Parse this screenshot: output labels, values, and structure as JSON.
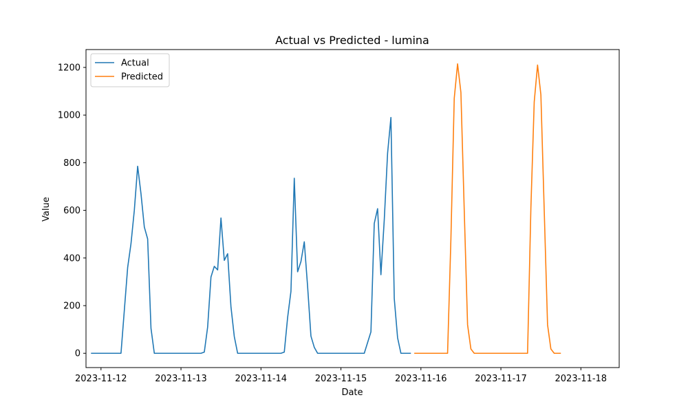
{
  "chart_data": {
    "type": "line",
    "title": "Actual vs Predicted - lumina",
    "xlabel": "Date",
    "ylabel": "Value",
    "x_tick_labels": [
      "2023-11-12",
      "2023-11-13",
      "2023-11-14",
      "2023-11-15",
      "2023-11-16",
      "2023-11-17",
      "2023-11-18"
    ],
    "y_tick_labels": [
      "0",
      "200",
      "400",
      "600",
      "800",
      "1000",
      "1200"
    ],
    "xlim": [
      "2023-11-11T19:30",
      "2023-11-18T11:30"
    ],
    "ylim": [
      -60,
      1275
    ],
    "grid": false,
    "legend_position": "top-left",
    "series": [
      {
        "name": "Actual",
        "color": "#1f77b4",
        "points": [
          [
            "2023-11-11T21:00",
            0
          ],
          [
            "2023-11-12T00:00",
            0
          ],
          [
            "2023-11-12T06:00",
            0
          ],
          [
            "2023-11-12T07:00",
            180
          ],
          [
            "2023-11-12T08:00",
            360
          ],
          [
            "2023-11-12T09:00",
            460
          ],
          [
            "2023-11-12T10:00",
            600
          ],
          [
            "2023-11-12T11:00",
            785
          ],
          [
            "2023-11-12T12:00",
            670
          ],
          [
            "2023-11-12T13:00",
            530
          ],
          [
            "2023-11-12T14:00",
            480
          ],
          [
            "2023-11-12T15:00",
            105
          ],
          [
            "2023-11-12T16:00",
            0
          ],
          [
            "2023-11-12T22:00",
            0
          ],
          [
            "2023-11-13T04:00",
            0
          ],
          [
            "2023-11-13T06:00",
            0
          ],
          [
            "2023-11-13T07:00",
            5
          ],
          [
            "2023-11-13T08:00",
            110
          ],
          [
            "2023-11-13T09:00",
            320
          ],
          [
            "2023-11-13T10:00",
            365
          ],
          [
            "2023-11-13T11:00",
            350
          ],
          [
            "2023-11-13T12:00",
            568
          ],
          [
            "2023-11-13T13:00",
            390
          ],
          [
            "2023-11-13T14:00",
            418
          ],
          [
            "2023-11-13T15:00",
            195
          ],
          [
            "2023-11-13T16:00",
            70
          ],
          [
            "2023-11-13T17:00",
            0
          ],
          [
            "2023-11-14T06:00",
            0
          ],
          [
            "2023-11-14T07:00",
            5
          ],
          [
            "2023-11-14T08:00",
            150
          ],
          [
            "2023-11-14T09:00",
            260
          ],
          [
            "2023-11-14T10:00",
            735
          ],
          [
            "2023-11-14T11:00",
            342
          ],
          [
            "2023-11-14T12:00",
            385
          ],
          [
            "2023-11-14T13:00",
            468
          ],
          [
            "2023-11-14T14:00",
            280
          ],
          [
            "2023-11-14T15:00",
            72
          ],
          [
            "2023-11-14T16:00",
            25
          ],
          [
            "2023-11-14T17:00",
            0
          ],
          [
            "2023-11-15T06:00",
            0
          ],
          [
            "2023-11-15T07:00",
            0
          ],
          [
            "2023-11-15T09:00",
            90
          ],
          [
            "2023-11-15T10:00",
            545
          ],
          [
            "2023-11-15T11:00",
            607
          ],
          [
            "2023-11-15T12:00",
            330
          ],
          [
            "2023-11-15T13:00",
            560
          ],
          [
            "2023-11-15T14:00",
            840
          ],
          [
            "2023-11-15T15:00",
            990
          ],
          [
            "2023-11-15T16:00",
            230
          ],
          [
            "2023-11-15T17:00",
            65
          ],
          [
            "2023-11-15T18:00",
            0
          ],
          [
            "2023-11-15T21:00",
            0
          ]
        ]
      },
      {
        "name": "Predicted",
        "color": "#ff7f0e",
        "points": [
          [
            "2023-11-15T22:00",
            0
          ],
          [
            "2023-11-16T03:00",
            0
          ],
          [
            "2023-11-16T07:00",
            0
          ],
          [
            "2023-11-16T08:00",
            0
          ],
          [
            "2023-11-16T09:00",
            480
          ],
          [
            "2023-11-16T10:00",
            1070
          ],
          [
            "2023-11-16T11:00",
            1215
          ],
          [
            "2023-11-16T12:00",
            1095
          ],
          [
            "2023-11-16T13:00",
            600
          ],
          [
            "2023-11-16T14:00",
            120
          ],
          [
            "2023-11-16T15:00",
            18
          ],
          [
            "2023-11-16T16:00",
            0
          ],
          [
            "2023-11-17T00:00",
            0
          ],
          [
            "2023-11-17T08:00",
            0
          ],
          [
            "2023-11-17T09:00",
            610
          ],
          [
            "2023-11-17T10:00",
            1055
          ],
          [
            "2023-11-17T11:00",
            1210
          ],
          [
            "2023-11-17T12:00",
            1085
          ],
          [
            "2023-11-17T13:00",
            600
          ],
          [
            "2023-11-17T14:00",
            120
          ],
          [
            "2023-11-17T15:00",
            18
          ],
          [
            "2023-11-17T16:00",
            0
          ],
          [
            "2023-11-17T18:00",
            0
          ]
        ]
      }
    ]
  }
}
